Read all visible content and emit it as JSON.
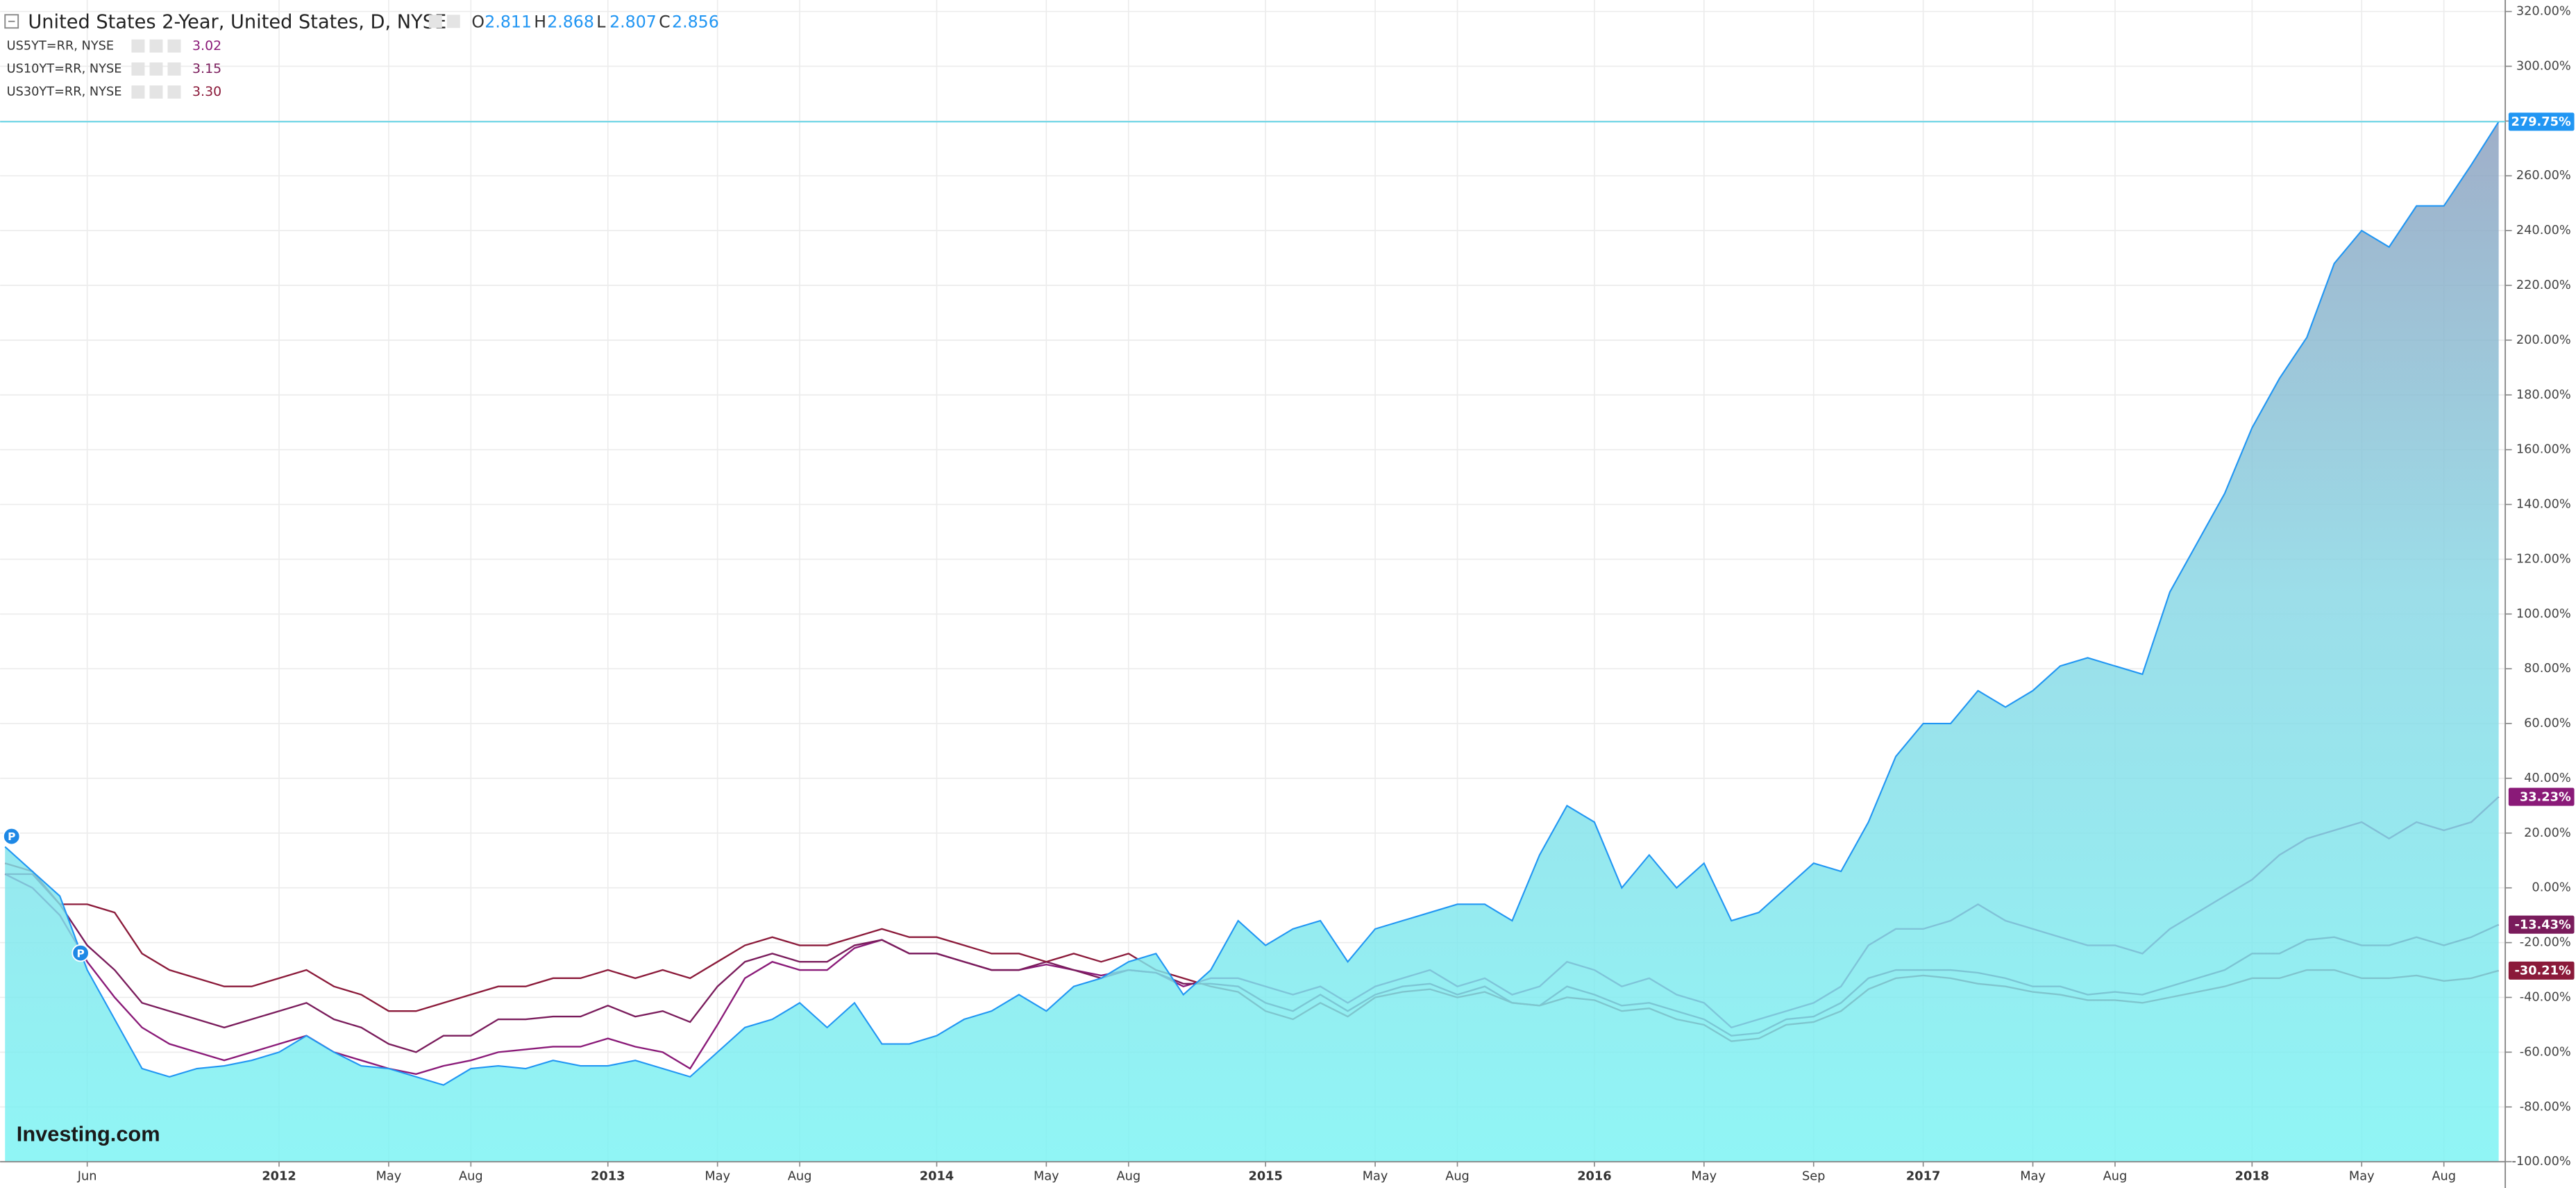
{
  "chart_data": {
    "type": "line",
    "header": {
      "title": "United States 2-Year, United States, D, NYSE",
      "ohlc": [
        {
          "key": "O",
          "value": "2.811"
        },
        {
          "key": "H",
          "value": "2.868"
        },
        {
          "key": "L",
          "value": "2.807"
        },
        {
          "key": "C",
          "value": "2.856"
        }
      ]
    },
    "logo": "Investing.com",
    "markers": [
      "P",
      "P"
    ],
    "categories": [
      null,
      null,
      null,
      "Jun",
      null,
      null,
      null,
      null,
      null,
      null,
      "2012",
      null,
      null,
      null,
      "May",
      null,
      null,
      "Aug",
      null,
      null,
      null,
      null,
      "2013",
      null,
      null,
      null,
      "May",
      null,
      null,
      "Aug",
      null,
      null,
      null,
      null,
      "2014",
      null,
      null,
      null,
      "May",
      null,
      null,
      "Aug",
      null,
      null,
      null,
      null,
      "2015",
      null,
      null,
      null,
      "May",
      null,
      null,
      "Aug",
      null,
      null,
      null,
      null,
      "2016",
      null,
      null,
      null,
      "May",
      null,
      null,
      null,
      "Sep",
      null,
      null,
      null,
      "2017",
      null,
      null,
      null,
      "May",
      null,
      null,
      "Aug",
      null,
      null,
      null,
      null,
      "2018",
      null,
      null,
      null,
      "May",
      null,
      null,
      "Aug",
      null,
      null
    ],
    "series": [
      {
        "name": "United States 2-Year",
        "style": "area",
        "color": "#2196f3",
        "values": [
          15,
          6,
          -3,
          -30,
          -48,
          -66,
          -69,
          -66,
          -65,
          -63,
          -60,
          -54,
          -60,
          -65,
          -66,
          -69,
          -72,
          -66,
          -65,
          -66,
          -63,
          -65,
          -65,
          -63,
          -66,
          -69,
          -60,
          -51,
          -48,
          -42,
          -51,
          -42,
          -57,
          -57,
          -54,
          -48,
          -45,
          -39,
          -45,
          -36,
          -33,
          -27,
          -24,
          -39,
          -30,
          -12,
          -21,
          -15,
          -12,
          -27,
          -15,
          -12,
          -9,
          -6,
          -6,
          -12,
          12,
          30,
          24,
          0,
          12,
          0,
          9,
          -12,
          -9,
          0,
          9,
          6,
          24,
          48,
          60,
          60,
          72,
          66,
          72,
          81,
          84,
          81,
          78,
          108,
          126,
          144,
          168,
          186,
          201,
          228,
          240,
          234,
          249,
          249,
          264,
          279.75
        ],
        "end_label": {
          "value": 279.75,
          "label": "279.75%"
        }
      },
      {
        "name": "US5YT=RR, NYSE",
        "last": "3.02",
        "style": "line",
        "color": "#8a1a78",
        "values": [
          5,
          0,
          -10,
          -27,
          -40,
          -51,
          -57,
          -60,
          -63,
          -60,
          -57,
          -54,
          -60,
          -63,
          -66,
          -68,
          -65,
          -63,
          -60,
          -59,
          -58,
          -58,
          -55,
          -58,
          -60,
          -66,
          -50,
          -33,
          -27,
          -30,
          -30,
          -22,
          -19,
          -24,
          -24,
          -27,
          -30,
          -30,
          -28,
          -30,
          -32,
          -30,
          -31,
          -36,
          -33,
          -33,
          -36,
          -39,
          -36,
          -42,
          -36,
          -33,
          -30,
          -36,
          -33,
          -39,
          -36,
          -27,
          -30,
          -36,
          -33,
          -39,
          -42,
          -51,
          -48,
          -45,
          -42,
          -36,
          -21,
          -15,
          -15,
          -12,
          -6,
          -12,
          -15,
          -18,
          -21,
          -21,
          -24,
          -15,
          -9,
          -3,
          3,
          12,
          18,
          21,
          24,
          18,
          24,
          21,
          24,
          33.23
        ],
        "end_label": {
          "value": 33.23,
          "label": "33.23%"
        }
      },
      {
        "name": "US10YT=RR, NYSE",
        "last": "3.15",
        "style": "line",
        "color": "#7a1c5c",
        "values": [
          5,
          5,
          -6,
          -21,
          -30,
          -42,
          -45,
          -48,
          -51,
          -48,
          -45,
          -42,
          -48,
          -51,
          -57,
          -60,
          -54,
          -54,
          -48,
          -48,
          -47,
          -47,
          -43,
          -47,
          -45,
          -49,
          -36,
          -27,
          -24,
          -27,
          -27,
          -21,
          -19,
          -24,
          -24,
          -27,
          -30,
          -30,
          -27,
          -30,
          -33,
          -30,
          -31,
          -35,
          -35,
          -36,
          -42,
          -45,
          -39,
          -45,
          -39,
          -36,
          -35,
          -39,
          -36,
          -42,
          -43,
          -36,
          -39,
          -43,
          -42,
          -45,
          -48,
          -54,
          -53,
          -48,
          -47,
          -42,
          -33,
          -30,
          -30,
          -30,
          -31,
          -33,
          -36,
          -36,
          -39,
          -38,
          -39,
          -36,
          -33,
          -30,
          -24,
          -24,
          -19,
          -18,
          -21,
          -21,
          -18,
          -21,
          -18,
          -13.43
        ],
        "end_label": {
          "value": -13.43,
          "label": "-13.43%"
        }
      },
      {
        "name": "US30YT=RR, NYSE",
        "last": "3.30",
        "style": "line",
        "color": "#8b1a3a",
        "values": [
          9,
          6,
          -6,
          -6,
          -9,
          -24,
          -30,
          -33,
          -36,
          -36,
          -33,
          -30,
          -36,
          -39,
          -45,
          -45,
          -42,
          -39,
          -36,
          -36,
          -33,
          -33,
          -30,
          -33,
          -30,
          -33,
          -27,
          -21,
          -18,
          -21,
          -21,
          -18,
          -15,
          -18,
          -18,
          -21,
          -24,
          -24,
          -27,
          -24,
          -27,
          -24,
          -30,
          -33,
          -36,
          -38,
          -45,
          -48,
          -42,
          -47,
          -40,
          -38,
          -37,
          -40,
          -38,
          -42,
          -43,
          -40,
          -41,
          -45,
          -44,
          -48,
          -50,
          -56,
          -55,
          -50,
          -49,
          -45,
          -37,
          -33,
          -32,
          -33,
          -35,
          -36,
          -38,
          -39,
          -41,
          -41,
          -42,
          -40,
          -38,
          -36,
          -33,
          -33,
          -30,
          -30,
          -33,
          -33,
          -32,
          -34,
          -33,
          -30.21
        ],
        "end_label": {
          "value": -30.21,
          "label": "-30.21%"
        }
      }
    ],
    "ylim": [
      -100,
      324.2
    ],
    "yticks": [
      {
        "value": -100,
        "label": "-100.00%"
      },
      {
        "value": -80,
        "label": "-80.00%"
      },
      {
        "value": -60,
        "label": "-60.00%"
      },
      {
        "value": -40,
        "label": "-40.00%"
      },
      {
        "value": -20,
        "label": "-20.00%"
      },
      {
        "value": 0,
        "label": "0.00%"
      },
      {
        "value": 20,
        "label": "20.00%"
      },
      {
        "value": 40,
        "label": "40.00%"
      },
      {
        "value": 60,
        "label": "60.00%"
      },
      {
        "value": 80,
        "label": "80.00%"
      },
      {
        "value": 100,
        "label": "100.00%"
      },
      {
        "value": 120,
        "label": "120.00%"
      },
      {
        "value": 140,
        "label": "140.00%"
      },
      {
        "value": 160,
        "label": "160.00%"
      },
      {
        "value": 180,
        "label": "180.00%"
      },
      {
        "value": 200,
        "label": "200.00%"
      },
      {
        "value": 220,
        "label": "220.00%"
      },
      {
        "value": 240,
        "label": "240.00%"
      },
      {
        "value": 260,
        "label": "260.00%"
      },
      {
        "value": 280,
        "label": "280.00%"
      },
      {
        "value": 300,
        "label": "300.00%"
      },
      {
        "value": 320,
        "label": "320.00%"
      }
    ],
    "grid": true
  }
}
